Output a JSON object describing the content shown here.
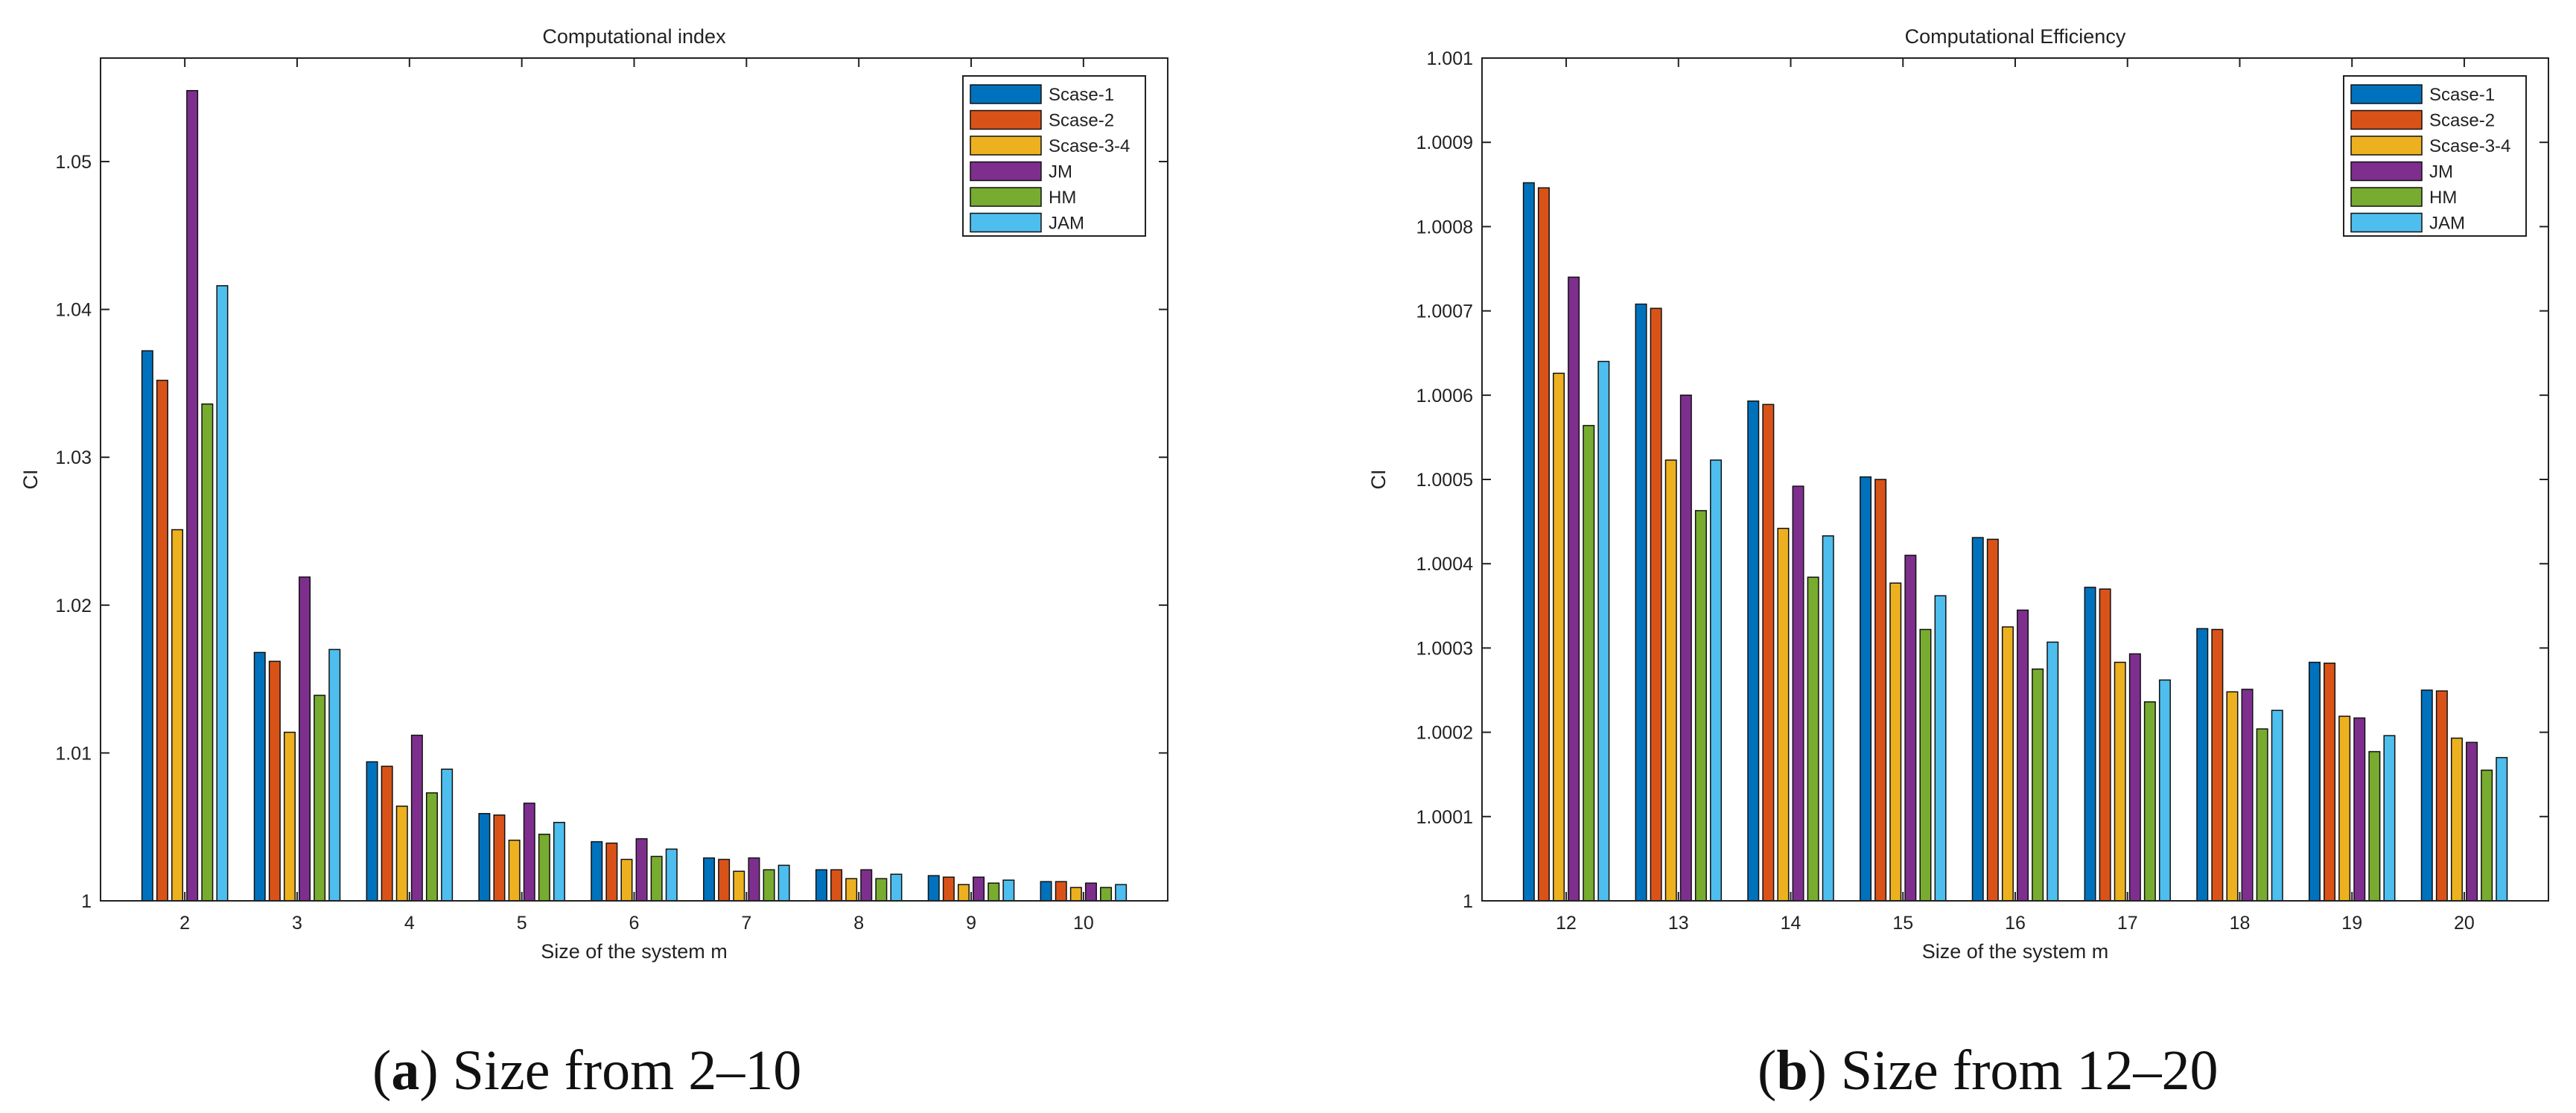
{
  "series_colors": [
    "#0072BD",
    "#D95319",
    "#EDB120",
    "#7E2F8E",
    "#77AC30",
    "#4DBEEE"
  ],
  "chart_data": [
    {
      "type": "bar",
      "title": "Computational index",
      "xlabel": "Size of the system m",
      "ylabel": "CI",
      "ylim": [
        1,
        1.057
      ],
      "yticks": [
        1,
        1.01,
        1.02,
        1.03,
        1.04,
        1.05
      ],
      "ytick_labels": [
        "1",
        "1.01",
        "1.02",
        "1.03",
        "1.04",
        "1.05"
      ],
      "grid": false,
      "legend_position": "top-right",
      "categories": [
        "2",
        "3",
        "4",
        "5",
        "6",
        "7",
        "8",
        "9",
        "10"
      ],
      "series": [
        {
          "name": "Scase-1",
          "values": [
            1.0372,
            1.0168,
            1.0094,
            1.0059,
            1.004,
            1.0029,
            1.0021,
            1.0017,
            1.0013
          ]
        },
        {
          "name": "Scase-2",
          "values": [
            1.0352,
            1.0162,
            1.0091,
            1.0058,
            1.0039,
            1.0028,
            1.0021,
            1.0016,
            1.0013
          ]
        },
        {
          "name": "Scase-3-4",
          "values": [
            1.0251,
            1.0114,
            1.0064,
            1.0041,
            1.0028,
            1.002,
            1.0015,
            1.0011,
            1.0009
          ]
        },
        {
          "name": "JM",
          "values": [
            1.0548,
            1.0219,
            1.0112,
            1.0066,
            1.0042,
            1.0029,
            1.0021,
            1.0016,
            1.0012
          ]
        },
        {
          "name": "HM",
          "values": [
            1.0336,
            1.0139,
            1.0073,
            1.0045,
            1.003,
            1.0021,
            1.0015,
            1.0012,
            1.0009
          ]
        },
        {
          "name": "JAM",
          "values": [
            1.0416,
            1.017,
            1.0089,
            1.0053,
            1.0035,
            1.0024,
            1.0018,
            1.0014,
            1.0011
          ]
        }
      ]
    },
    {
      "type": "bar",
      "title": "Computational Efficiency",
      "xlabel": "Size of the system m",
      "ylabel": "CI",
      "ylim": [
        1,
        1.001
      ],
      "yticks": [
        1,
        1.0001,
        1.0002,
        1.0003,
        1.0004,
        1.0005,
        1.0006,
        1.0007,
        1.0008,
        1.0009,
        1.001
      ],
      "ytick_labels": [
        "1",
        "1.0001",
        "1.0002",
        "1.0003",
        "1.0004",
        "1.0005",
        "1.0006",
        "1.0007",
        "1.0008",
        "1.0009",
        "1.001"
      ],
      "grid": false,
      "legend_position": "top-right",
      "categories": [
        "12",
        "13",
        "14",
        "15",
        "16",
        "17",
        "18",
        "19",
        "20"
      ],
      "series": [
        {
          "name": "Scase-1",
          "values": [
            1.000852,
            1.000708,
            1.000593,
            1.000503,
            1.000431,
            1.000372,
            1.000323,
            1.000283,
            1.00025
          ]
        },
        {
          "name": "Scase-2",
          "values": [
            1.000846,
            1.000703,
            1.000589,
            1.0005,
            1.000429,
            1.00037,
            1.000322,
            1.000282,
            1.000249
          ]
        },
        {
          "name": "Scase-3-4",
          "values": [
            1.000626,
            1.000523,
            1.000442,
            1.000377,
            1.000325,
            1.000283,
            1.000248,
            1.000219,
            1.000193
          ]
        },
        {
          "name": "JM",
          "values": [
            1.00074,
            1.0006,
            1.000492,
            1.00041,
            1.000345,
            1.000293,
            1.000251,
            1.000217,
            1.000188
          ]
        },
        {
          "name": "HM",
          "values": [
            1.000564,
            1.000463,
            1.000384,
            1.000322,
            1.000275,
            1.000236,
            1.000204,
            1.000177,
            1.000155
          ]
        },
        {
          "name": "JAM",
          "values": [
            1.00064,
            1.000523,
            1.000433,
            1.000362,
            1.000307,
            1.000262,
            1.000226,
            1.000196,
            1.00017
          ]
        }
      ]
    }
  ],
  "captions": [
    {
      "letter": "a",
      "text": "Size from 2–10"
    },
    {
      "letter": "b",
      "text": "Size from 12–20"
    }
  ]
}
